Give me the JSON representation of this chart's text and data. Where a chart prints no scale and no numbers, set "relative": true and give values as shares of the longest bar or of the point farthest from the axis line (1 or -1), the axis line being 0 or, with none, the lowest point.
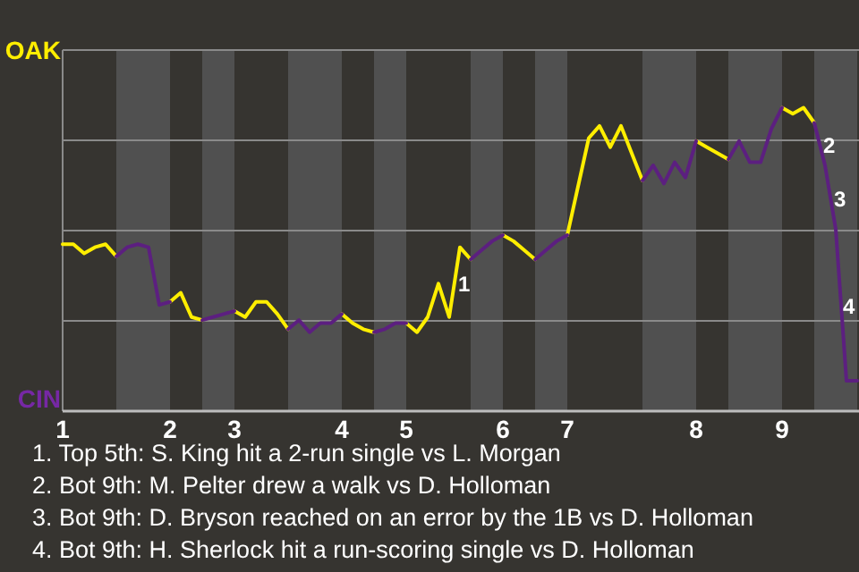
{
  "chart_data": {
    "type": "line",
    "relative": true,
    "categories": [
      "1",
      null,
      null,
      null,
      null,
      null,
      null,
      null,
      null,
      null,
      "2",
      null,
      null,
      null,
      null,
      null,
      "3",
      null,
      null,
      null,
      null,
      null,
      null,
      null,
      null,
      null,
      "4",
      null,
      null,
      null,
      null,
      null,
      "5",
      null,
      null,
      null,
      null,
      null,
      null,
      null,
      null,
      "6",
      null,
      null,
      null,
      null,
      null,
      "7",
      null,
      null,
      null,
      null,
      null,
      null,
      null,
      null,
      null,
      null,
      null,
      "8",
      null,
      null,
      null,
      null,
      null,
      null,
      null,
      "9",
      null,
      null,
      null,
      null,
      null,
      null,
      null
    ],
    "grid": "y",
    "marker": "none",
    "line_style": "solid",
    "legend": "left",
    "series": [
      {
        "name": "OAK",
        "color": "#ffee00",
        "values": [
          0.55,
          0.55,
          0.52,
          0.54,
          0.55,
          0.51,
          null,
          null,
          null,
          null,
          0.36,
          0.39,
          0.31,
          0.3,
          null,
          null,
          0.33,
          0.31,
          0.36,
          0.36,
          0.32,
          0.27,
          null,
          null,
          null,
          null,
          0.32,
          0.29,
          0.27,
          0.26,
          null,
          null,
          0.29,
          0.26,
          0.31,
          0.42,
          0.31,
          0.54,
          0.5,
          null,
          null,
          0.58,
          0.56,
          0.53,
          0.5,
          null,
          null,
          0.58,
          0.74,
          0.9,
          0.94,
          0.87,
          0.94,
          0.85,
          0.76,
          null,
          null,
          null,
          null,
          0.89,
          0.87,
          0.85,
          0.83,
          null,
          null,
          null,
          null,
          1,
          0.98,
          1,
          0.95,
          null,
          null,
          null,
          null
        ]
      },
      {
        "name": "CIN",
        "color": "#5c1f80",
        "values": [
          null,
          null,
          null,
          null,
          null,
          0.51,
          0.54,
          0.55,
          0.54,
          0.35,
          0.36,
          null,
          null,
          0.3,
          0.31,
          0.32,
          0.33,
          null,
          null,
          null,
          null,
          0.27,
          0.3,
          0.26,
          0.29,
          0.29,
          0.32,
          null,
          null,
          0.26,
          0.27,
          0.29,
          0.29,
          null,
          null,
          null,
          null,
          null,
          0.5,
          0.53,
          0.56,
          0.58,
          null,
          null,
          0.5,
          0.53,
          0.56,
          0.58,
          null,
          null,
          null,
          null,
          null,
          null,
          0.76,
          0.81,
          0.75,
          0.82,
          0.77,
          0.89,
          null,
          null,
          0.83,
          0.89,
          0.82,
          0.82,
          0.93,
          1,
          null,
          null,
          0.95,
          0.81,
          0.6,
          0.1,
          0.1
        ]
      }
    ],
    "annotations": [
      {
        "text": "1",
        "y": 0.54
      },
      {
        "text": "2",
        "y": 0.81
      },
      {
        "text": "3",
        "y": 0.6
      },
      {
        "text": "4",
        "y": 0.1
      },
      "1. Top 5th: S. King hit a 2-run single vs L. Morgan",
      "2. Bot 9th: M. Pelter drew a walk vs D. Holloman",
      "3. Bot 9th: D. Bryson reached on an error by the 1B vs D. Holloman",
      "4. Bot 9th: H. Sherlock hit a run-scoring single vs D. Holloman"
    ]
  }
}
